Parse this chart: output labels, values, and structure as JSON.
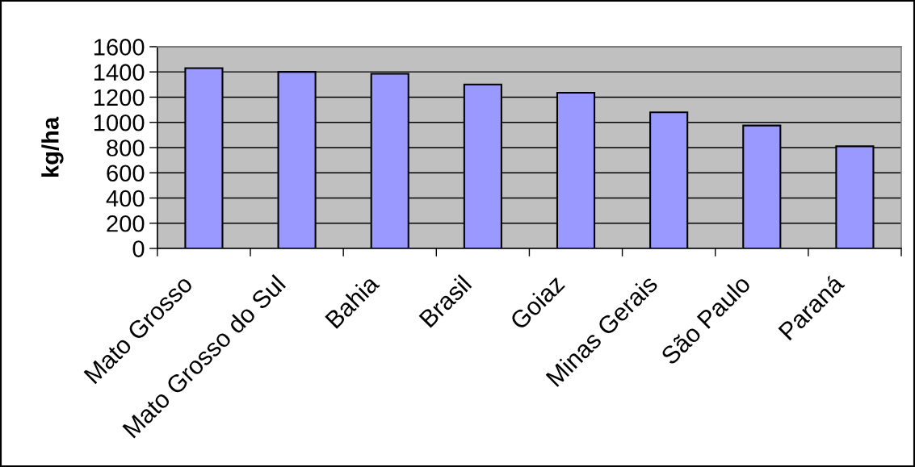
{
  "chart_data": {
    "type": "bar",
    "ylabel": "kg/ha",
    "categories": [
      "Mato Grosso",
      "Mato Grosso do Sul",
      "Bahia",
      "Brasil",
      "Goiaz",
      "Minas Gerais",
      "São Paulo",
      "Paraná"
    ],
    "values": [
      1430,
      1400,
      1385,
      1300,
      1235,
      1080,
      975,
      810
    ],
    "color": "#9999ff",
    "ylim": [
      0,
      1600
    ],
    "yticks": [
      0,
      200,
      400,
      600,
      800,
      1000,
      1200,
      1400,
      1600
    ],
    "grid": "y"
  }
}
